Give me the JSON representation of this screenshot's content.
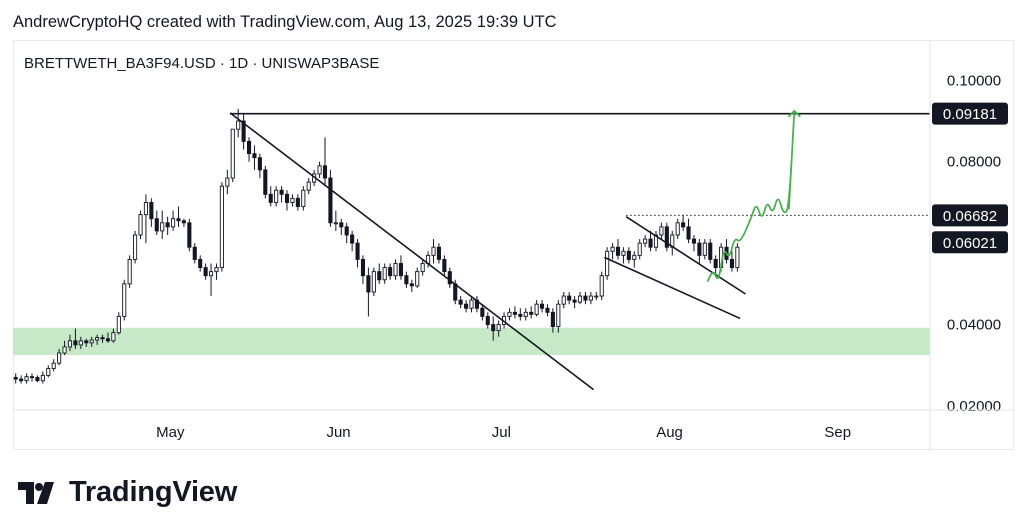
{
  "header": {
    "caption": "AndrewCryptoHQ created with TradingView.com, Aug 13, 2025 19:39 UTC",
    "symbol": "BRETTWETH_BA3F94.USD · 1D · UNISWAP3BASE"
  },
  "brand": {
    "name": "TradingView",
    "logo_icon": "tradingview-logo-icon"
  },
  "colors": {
    "up": "#131722",
    "down": "#131722",
    "zone": "#c8e9c8",
    "projection": "#4caf50",
    "trendline": "#131722"
  },
  "chart_data": {
    "type": "candlestick",
    "title": "BRETTWETH_BA3F94.USD · 1D · UNISWAP3BASE",
    "x_tick_labels": [
      "May",
      "Jun",
      "Jul",
      "Aug",
      "Sep"
    ],
    "x_ticks": [
      "2025-05-01",
      "2025-06-01",
      "2025-07-01",
      "2025-08-01",
      "2025-09-01"
    ],
    "x_range": [
      "2025-04-02",
      "2025-09-18"
    ],
    "y_tick_labels": [
      "0.10000",
      "0.08000",
      "0.04000",
      "0.02000"
    ],
    "y_ticks": [
      0.1,
      0.08,
      0.04,
      0.02
    ],
    "ylim": [
      0.019,
      0.105
    ],
    "price_labels": [
      {
        "text": "0.09181",
        "value": 0.09181
      },
      {
        "text": "0.06682",
        "value": 0.06682
      },
      {
        "text": "0.06021",
        "value": 0.06021
      }
    ],
    "series": [
      {
        "type": "candlestick",
        "dates": [
          "2025-04-02",
          "2025-04-03",
          "2025-04-04",
          "2025-04-05",
          "2025-04-06",
          "2025-04-07",
          "2025-04-08",
          "2025-04-09",
          "2025-04-10",
          "2025-04-11",
          "2025-04-12",
          "2025-04-13",
          "2025-04-14",
          "2025-04-15",
          "2025-04-16",
          "2025-04-17",
          "2025-04-18",
          "2025-04-19",
          "2025-04-20",
          "2025-04-21",
          "2025-04-22",
          "2025-04-23",
          "2025-04-24",
          "2025-04-25",
          "2025-04-26",
          "2025-04-27",
          "2025-04-28",
          "2025-04-29",
          "2025-04-30",
          "2025-05-01",
          "2025-05-02",
          "2025-05-03",
          "2025-05-04",
          "2025-05-05",
          "2025-05-06",
          "2025-05-07",
          "2025-05-08",
          "2025-05-09",
          "2025-05-10",
          "2025-05-11",
          "2025-05-12",
          "2025-05-13",
          "2025-05-14",
          "2025-05-15",
          "2025-05-16",
          "2025-05-17",
          "2025-05-18",
          "2025-05-19",
          "2025-05-20",
          "2025-05-21",
          "2025-05-22",
          "2025-05-23",
          "2025-05-24",
          "2025-05-25",
          "2025-05-26",
          "2025-05-27",
          "2025-05-28",
          "2025-05-29",
          "2025-05-30",
          "2025-05-31",
          "2025-06-01",
          "2025-06-02",
          "2025-06-03",
          "2025-06-04",
          "2025-06-05",
          "2025-06-06",
          "2025-06-07",
          "2025-06-08",
          "2025-06-09",
          "2025-06-10",
          "2025-06-11",
          "2025-06-12",
          "2025-06-13",
          "2025-06-14",
          "2025-06-15",
          "2025-06-16",
          "2025-06-17",
          "2025-06-18",
          "2025-06-19",
          "2025-06-20",
          "2025-06-21",
          "2025-06-22",
          "2025-06-23",
          "2025-06-24",
          "2025-06-25",
          "2025-06-26",
          "2025-06-27",
          "2025-06-28",
          "2025-06-29",
          "2025-06-30",
          "2025-07-01",
          "2025-07-02",
          "2025-07-03",
          "2025-07-04",
          "2025-07-05",
          "2025-07-06",
          "2025-07-07",
          "2025-07-08",
          "2025-07-09",
          "2025-07-10",
          "2025-07-11",
          "2025-07-12",
          "2025-07-13",
          "2025-07-14",
          "2025-07-15",
          "2025-07-16",
          "2025-07-17",
          "2025-07-18",
          "2025-07-19",
          "2025-07-20",
          "2025-07-21",
          "2025-07-22",
          "2025-07-23",
          "2025-07-24",
          "2025-07-25",
          "2025-07-26",
          "2025-07-27",
          "2025-07-28",
          "2025-07-29",
          "2025-07-30",
          "2025-07-31",
          "2025-08-01",
          "2025-08-02",
          "2025-08-03",
          "2025-08-04",
          "2025-08-05",
          "2025-08-06",
          "2025-08-07",
          "2025-08-08",
          "2025-08-09",
          "2025-08-10",
          "2025-08-11",
          "2025-08-12",
          "2025-08-13"
        ],
        "open": [
          0.027,
          0.0266,
          0.0262,
          0.0272,
          0.027,
          0.0262,
          0.0275,
          0.0292,
          0.0305,
          0.033,
          0.0345,
          0.036,
          0.035,
          0.036,
          0.0355,
          0.0362,
          0.0368,
          0.0365,
          0.036,
          0.038,
          0.042,
          0.05,
          0.056,
          0.062,
          0.067,
          0.07,
          0.066,
          0.063,
          0.065,
          0.064,
          0.066,
          0.0655,
          0.065,
          0.059,
          0.056,
          0.054,
          0.052,
          0.053,
          0.054,
          0.074,
          0.076,
          0.088,
          0.09,
          0.085,
          0.082,
          0.081,
          0.078,
          0.072,
          0.07,
          0.073,
          0.072,
          0.07,
          0.071,
          0.069,
          0.073,
          0.075,
          0.077,
          0.079,
          0.076,
          0.065,
          0.065,
          0.064,
          0.062,
          0.06,
          0.056,
          0.052,
          0.048,
          0.053,
          0.051,
          0.054,
          0.052,
          0.055,
          0.052,
          0.05,
          0.0495,
          0.053,
          0.055,
          0.057,
          0.059,
          0.056,
          0.053,
          0.05,
          0.046,
          0.045,
          0.044,
          0.046,
          0.044,
          0.042,
          0.04,
          0.0385,
          0.04,
          0.042,
          0.043,
          0.0425,
          0.042,
          0.043,
          0.0425,
          0.045,
          0.044,
          0.043,
          0.0395,
          0.045,
          0.047,
          0.046,
          0.0455,
          0.047,
          0.046,
          0.047,
          0.047,
          0.052,
          0.058,
          0.059,
          0.057,
          0.058,
          0.056,
          0.057,
          0.06,
          0.061,
          0.059,
          0.062,
          0.064,
          0.059,
          0.062,
          0.065,
          0.064,
          0.061,
          0.06,
          0.057,
          0.06,
          0.056,
          0.054,
          0.059,
          0.056,
          0.054
        ],
        "high": [
          0.028,
          0.0275,
          0.028,
          0.028,
          0.0275,
          0.0285,
          0.03,
          0.0315,
          0.034,
          0.036,
          0.0375,
          0.039,
          0.037,
          0.0365,
          0.037,
          0.0375,
          0.0375,
          0.038,
          0.039,
          0.043,
          0.051,
          0.057,
          0.063,
          0.068,
          0.072,
          0.071,
          0.068,
          0.068,
          0.0665,
          0.068,
          0.069,
          0.066,
          0.066,
          0.06,
          0.057,
          0.055,
          0.055,
          0.055,
          0.075,
          0.078,
          0.088,
          0.093,
          0.092,
          0.086,
          0.084,
          0.082,
          0.079,
          0.074,
          0.074,
          0.074,
          0.073,
          0.072,
          0.072,
          0.074,
          0.076,
          0.078,
          0.08,
          0.086,
          0.078,
          0.068,
          0.066,
          0.065,
          0.063,
          0.061,
          0.057,
          0.054,
          0.054,
          0.055,
          0.055,
          0.055,
          0.056,
          0.057,
          0.053,
          0.051,
          0.054,
          0.056,
          0.058,
          0.061,
          0.06,
          0.057,
          0.054,
          0.051,
          0.047,
          0.046,
          0.047,
          0.047,
          0.045,
          0.043,
          0.042,
          0.041,
          0.043,
          0.044,
          0.0445,
          0.044,
          0.044,
          0.0445,
          0.046,
          0.046,
          0.045,
          0.044,
          0.046,
          0.048,
          0.048,
          0.047,
          0.048,
          0.048,
          0.048,
          0.048,
          0.053,
          0.059,
          0.06,
          0.061,
          0.059,
          0.059,
          0.058,
          0.061,
          0.062,
          0.063,
          0.063,
          0.065,
          0.065,
          0.063,
          0.066,
          0.067,
          0.066,
          0.062,
          0.061,
          0.061,
          0.061,
          0.057,
          0.06,
          0.061,
          0.058,
          0.06
        ],
        "low": [
          0.0255,
          0.0255,
          0.0255,
          0.026,
          0.0258,
          0.0255,
          0.027,
          0.0285,
          0.03,
          0.0325,
          0.0335,
          0.034,
          0.034,
          0.0345,
          0.0345,
          0.035,
          0.0355,
          0.0355,
          0.0355,
          0.0375,
          0.041,
          0.049,
          0.055,
          0.061,
          0.06,
          0.064,
          0.062,
          0.061,
          0.062,
          0.063,
          0.064,
          0.064,
          0.058,
          0.055,
          0.053,
          0.051,
          0.047,
          0.051,
          0.053,
          0.072,
          0.075,
          0.086,
          0.083,
          0.08,
          0.078,
          0.076,
          0.071,
          0.069,
          0.069,
          0.07,
          0.068,
          0.069,
          0.068,
          0.068,
          0.072,
          0.074,
          0.076,
          0.074,
          0.064,
          0.063,
          0.062,
          0.06,
          0.058,
          0.054,
          0.05,
          0.042,
          0.047,
          0.05,
          0.05,
          0.051,
          0.051,
          0.051,
          0.049,
          0.048,
          0.049,
          0.052,
          0.054,
          0.055,
          0.055,
          0.052,
          0.049,
          0.045,
          0.044,
          0.043,
          0.043,
          0.043,
          0.041,
          0.039,
          0.036,
          0.037,
          0.039,
          0.041,
          0.0415,
          0.041,
          0.041,
          0.0415,
          0.042,
          0.043,
          0.042,
          0.038,
          0.038,
          0.044,
          0.045,
          0.044,
          0.045,
          0.045,
          0.045,
          0.046,
          0.046,
          0.051,
          0.056,
          0.056,
          0.055,
          0.055,
          0.054,
          0.056,
          0.059,
          0.058,
          0.058,
          0.061,
          0.058,
          0.057,
          0.061,
          0.063,
          0.06,
          0.058,
          0.055,
          0.056,
          0.055,
          0.052,
          0.053,
          0.055,
          0.053,
          0.053
        ],
        "close": [
          0.0266,
          0.0262,
          0.0272,
          0.027,
          0.0262,
          0.0275,
          0.0292,
          0.0305,
          0.033,
          0.0345,
          0.036,
          0.035,
          0.036,
          0.0355,
          0.0362,
          0.0368,
          0.0365,
          0.036,
          0.038,
          0.042,
          0.05,
          0.056,
          0.062,
          0.067,
          0.07,
          0.066,
          0.063,
          0.065,
          0.064,
          0.066,
          0.0655,
          0.065,
          0.059,
          0.056,
          0.054,
          0.052,
          0.053,
          0.054,
          0.074,
          0.076,
          0.088,
          0.09,
          0.085,
          0.082,
          0.081,
          0.078,
          0.072,
          0.07,
          0.073,
          0.072,
          0.07,
          0.071,
          0.069,
          0.073,
          0.075,
          0.077,
          0.079,
          0.076,
          0.065,
          0.065,
          0.064,
          0.062,
          0.06,
          0.056,
          0.052,
          0.048,
          0.053,
          0.051,
          0.054,
          0.052,
          0.055,
          0.052,
          0.05,
          0.0495,
          0.053,
          0.055,
          0.057,
          0.059,
          0.056,
          0.053,
          0.05,
          0.046,
          0.045,
          0.044,
          0.046,
          0.044,
          0.042,
          0.04,
          0.0385,
          0.04,
          0.042,
          0.043,
          0.0425,
          0.042,
          0.043,
          0.0425,
          0.045,
          0.044,
          0.043,
          0.0395,
          0.045,
          0.047,
          0.046,
          0.0455,
          0.047,
          0.046,
          0.047,
          0.047,
          0.052,
          0.058,
          0.059,
          0.057,
          0.058,
          0.056,
          0.057,
          0.06,
          0.061,
          0.059,
          0.062,
          0.064,
          0.059,
          0.062,
          0.065,
          0.064,
          0.061,
          0.06,
          0.057,
          0.06,
          0.056,
          0.054,
          0.059,
          0.056,
          0.054,
          0.059
        ]
      }
    ],
    "horizontal_lines": [
      {
        "value": 0.09181,
        "style": "solid",
        "x_start": "2025-05-12",
        "x_end": "2025-09-18"
      },
      {
        "value": 0.06682,
        "style": "dotted",
        "x_start": "2025-07-24",
        "x_end": "2025-09-18"
      }
    ],
    "support_zone": {
      "low": 0.0325,
      "high": 0.0392,
      "x_start": "2025-04-02",
      "x_end": "2025-09-18"
    },
    "trendlines": [
      {
        "name": "",
        "points": [
          {
            "x": "2025-05-12",
            "y": 0.092
          },
          {
            "x": "2025-07-18",
            "y": 0.024
          }
        ]
      },
      {
        "name": "",
        "points": [
          {
            "x": "2025-07-24",
            "y": 0.0665
          },
          {
            "x": "2025-08-15",
            "y": 0.0475
          }
        ]
      },
      {
        "name": "",
        "points": [
          {
            "x": "2025-07-20",
            "y": 0.0565
          },
          {
            "x": "2025-08-14",
            "y": 0.0415
          }
        ]
      }
    ],
    "projection": {
      "points": [
        {
          "x": "2025-08-08",
          "y": 0.0505
        },
        {
          "x": "2025-08-09",
          "y": 0.054
        },
        {
          "x": "2025-08-10",
          "y": 0.05
        },
        {
          "x": "2025-08-11",
          "y": 0.059
        },
        {
          "x": "2025-08-12",
          "y": 0.056
        },
        {
          "x": "2025-08-13",
          "y": 0.0615
        },
        {
          "x": "2025-08-14",
          "y": 0.06
        },
        {
          "x": "2025-08-16",
          "y": 0.066
        },
        {
          "x": "2025-08-17",
          "y": 0.07
        },
        {
          "x": "2025-08-18",
          "y": 0.0655
        },
        {
          "x": "2025-08-19",
          "y": 0.0705
        },
        {
          "x": "2025-08-20",
          "y": 0.067
        },
        {
          "x": "2025-08-21",
          "y": 0.072
        },
        {
          "x": "2025-08-22",
          "y": 0.067
        },
        {
          "x": "2025-08-23",
          "y": 0.0685
        },
        {
          "x": "2025-08-24",
          "y": 0.0925
        }
      ]
    },
    "grid": false,
    "legend": "none"
  }
}
